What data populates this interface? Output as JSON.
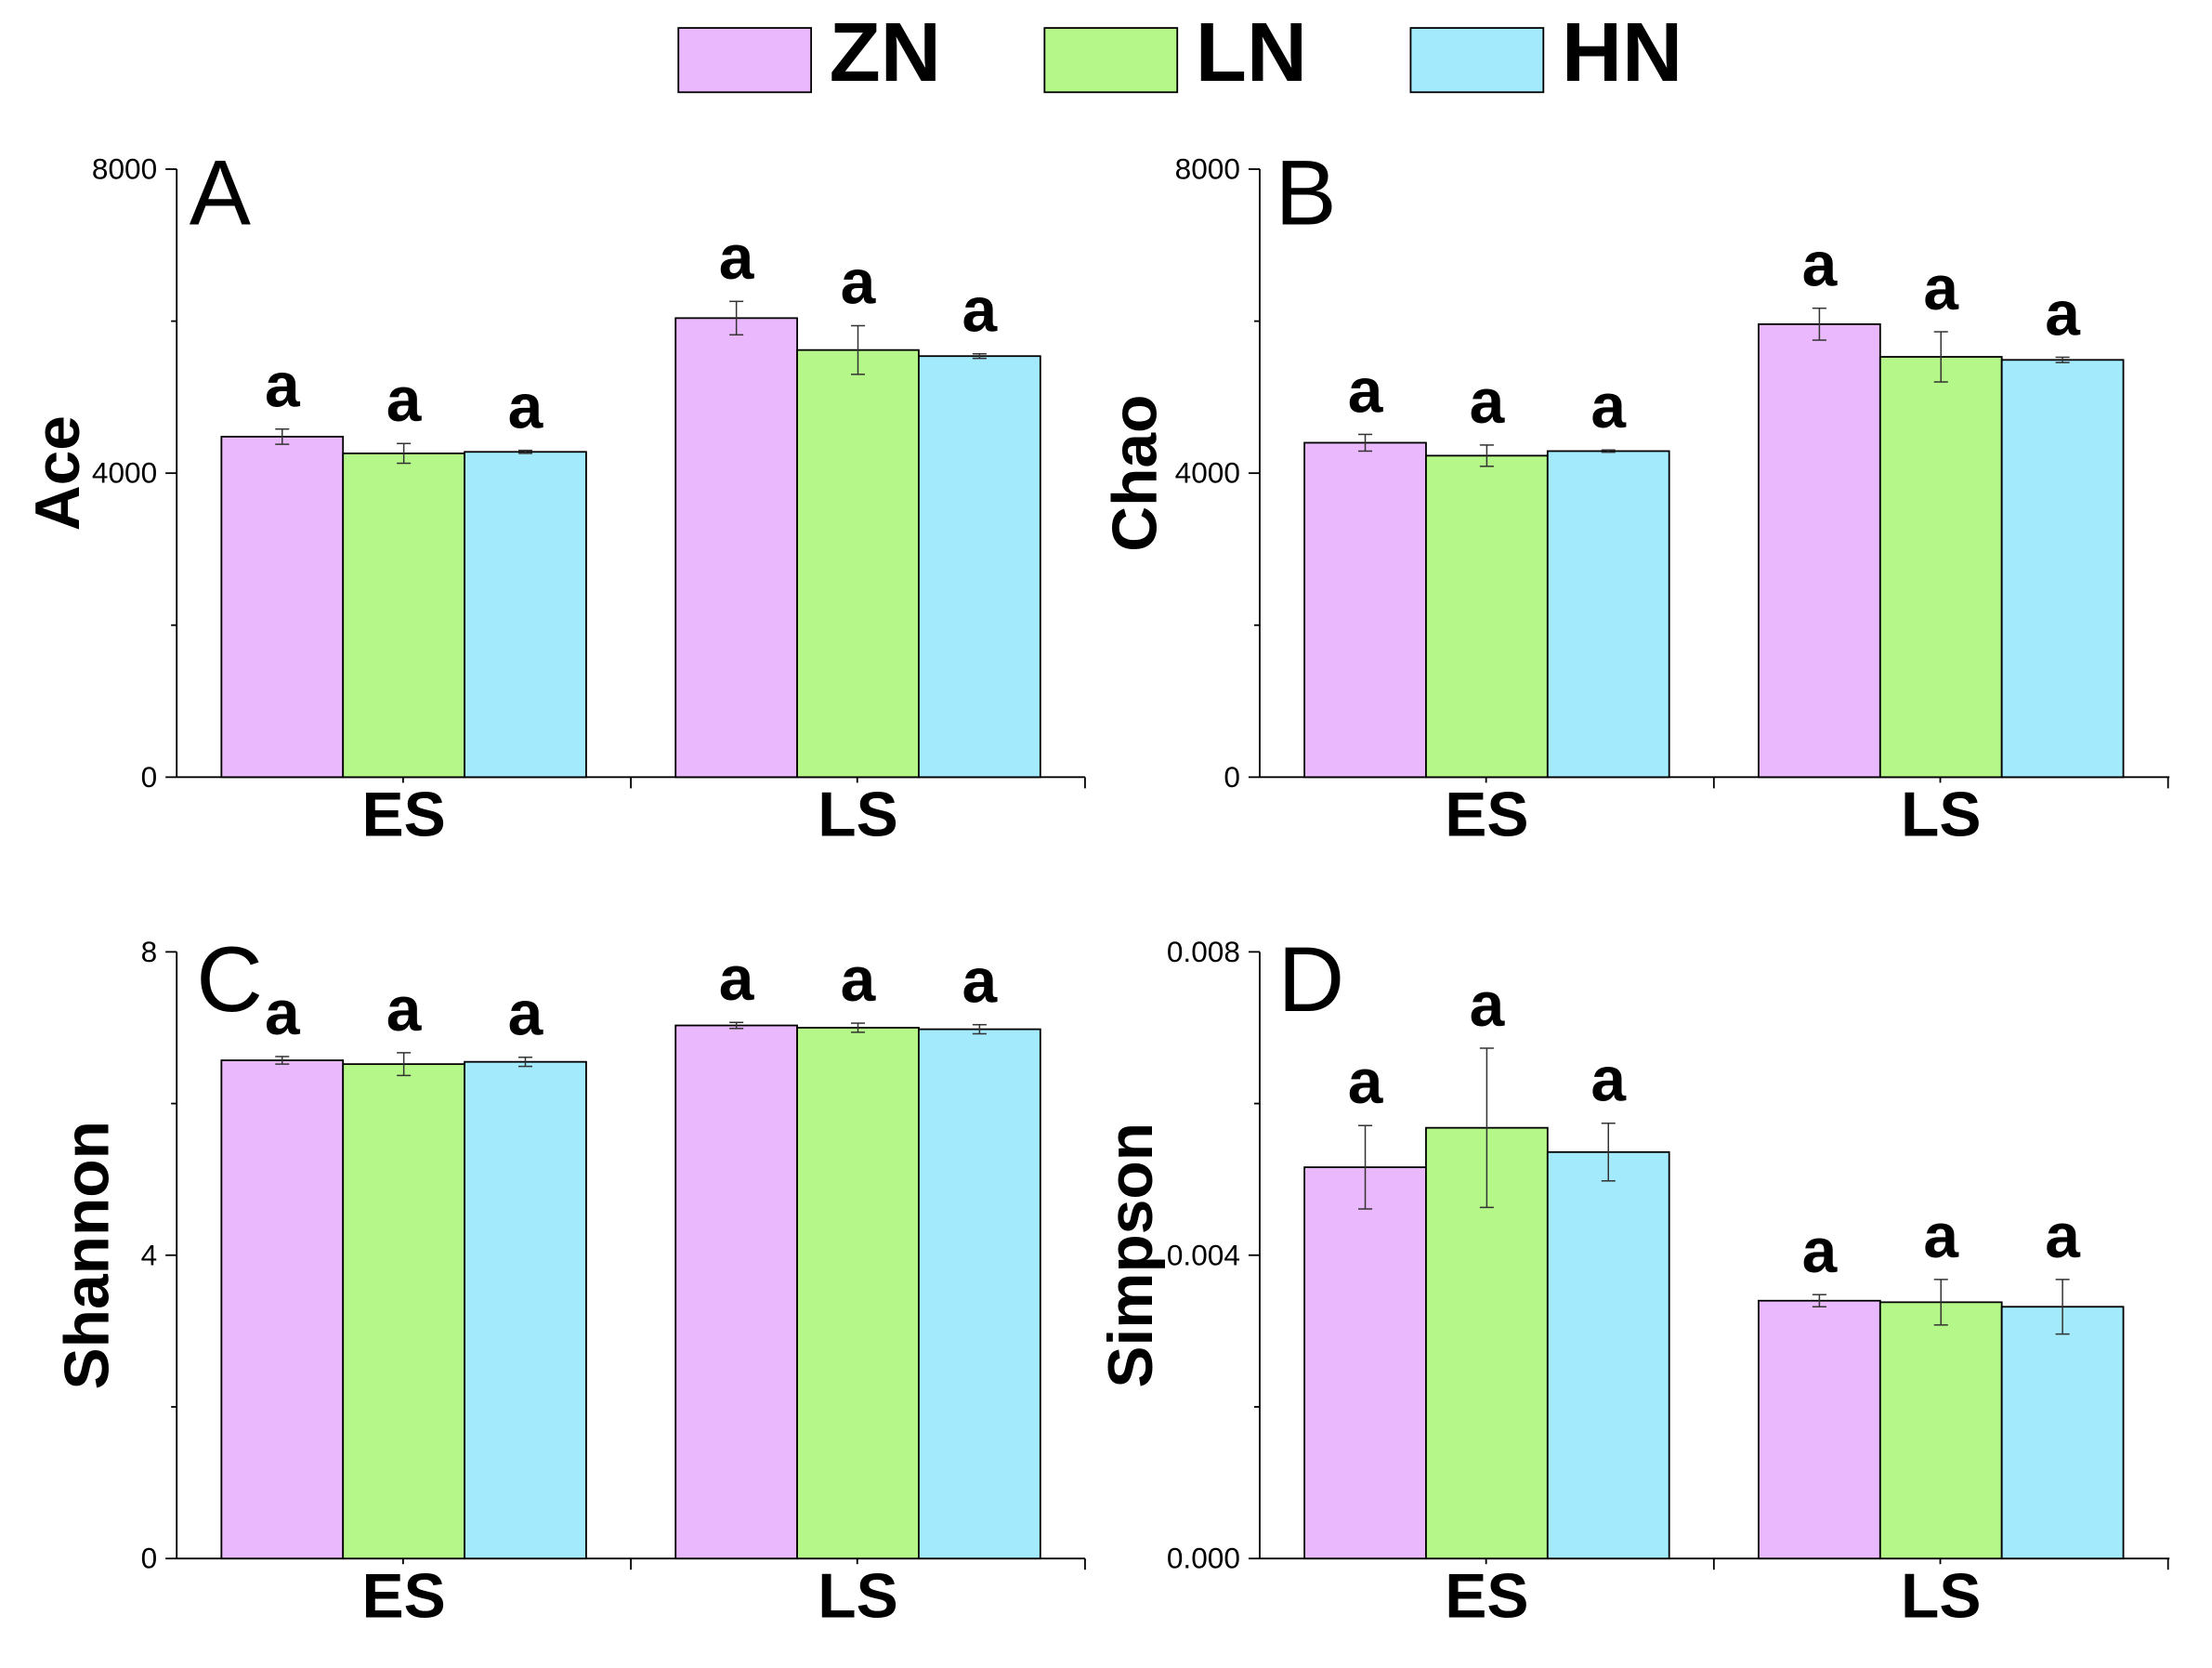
{
  "legend": [
    {
      "name": "ZN",
      "color": "#eab8fc"
    },
    {
      "name": "LN",
      "color": "#b5f789"
    },
    {
      "name": "HN",
      "color": "#a2eafc"
    }
  ],
  "chart_data": [
    {
      "type": "bar",
      "panel": "A",
      "ylabel": "Ace",
      "ylim": [
        0,
        8000
      ],
      "yticks": [
        "0",
        "4000",
        "8000"
      ],
      "categories": [
        "ES",
        "LS"
      ],
      "series": [
        {
          "name": "ZN",
          "values": [
            4480,
            6040
          ],
          "errors": [
            100,
            220
          ],
          "labels": [
            "a",
            "a"
          ]
        },
        {
          "name": "LN",
          "values": [
            4260,
            5620
          ],
          "errors": [
            130,
            320
          ],
          "labels": [
            "a",
            "a"
          ]
        },
        {
          "name": "HN",
          "values": [
            4280,
            5540
          ],
          "errors": [
            20,
            30
          ],
          "labels": [
            "a",
            "a"
          ]
        }
      ]
    },
    {
      "type": "bar",
      "panel": "B",
      "ylabel": "Chao",
      "ylim": [
        0,
        8000
      ],
      "yticks": [
        "0",
        "4000",
        "8000"
      ],
      "categories": [
        "ES",
        "LS"
      ],
      "series": [
        {
          "name": "ZN",
          "values": [
            4400,
            5960
          ],
          "errors": [
            110,
            210
          ],
          "labels": [
            "a",
            "a"
          ]
        },
        {
          "name": "LN",
          "values": [
            4230,
            5530
          ],
          "errors": [
            140,
            330
          ],
          "labels": [
            "a",
            "a"
          ]
        },
        {
          "name": "HN",
          "values": [
            4290,
            5490
          ],
          "errors": [
            15,
            35
          ],
          "labels": [
            "a",
            "a"
          ]
        }
      ]
    },
    {
      "type": "bar",
      "panel": "C",
      "ylabel": "Shannon",
      "ylim": [
        0,
        8
      ],
      "yticks": [
        "0",
        "4",
        "8"
      ],
      "categories": [
        "ES",
        "LS"
      ],
      "series": [
        {
          "name": "ZN",
          "values": [
            6.57,
            7.03
          ],
          "errors": [
            0.05,
            0.04
          ],
          "labels": [
            "a",
            "a"
          ]
        },
        {
          "name": "LN",
          "values": [
            6.52,
            7.0
          ],
          "errors": [
            0.15,
            0.06
          ],
          "labels": [
            "a",
            "a"
          ]
        },
        {
          "name": "HN",
          "values": [
            6.55,
            6.98
          ],
          "errors": [
            0.06,
            0.06
          ],
          "labels": [
            "a",
            "a"
          ]
        }
      ]
    },
    {
      "type": "bar",
      "panel": "D",
      "ylabel": "Simpson",
      "ylim": [
        0,
        0.008
      ],
      "yticks": [
        "0.000",
        "0.004",
        "0.008"
      ],
      "categories": [
        "ES",
        "LS"
      ],
      "series": [
        {
          "name": "ZN",
          "values": [
            0.00516,
            0.0034
          ],
          "errors": [
            0.00055,
            8e-05
          ],
          "labels": [
            "a",
            "a"
          ]
        },
        {
          "name": "LN",
          "values": [
            0.00568,
            0.00338
          ],
          "errors": [
            0.00105,
            0.0003
          ],
          "labels": [
            "a",
            "a"
          ]
        },
        {
          "name": "HN",
          "values": [
            0.00536,
            0.00332
          ],
          "errors": [
            0.00038,
            0.00036
          ],
          "labels": [
            "a",
            "a"
          ]
        }
      ]
    }
  ]
}
